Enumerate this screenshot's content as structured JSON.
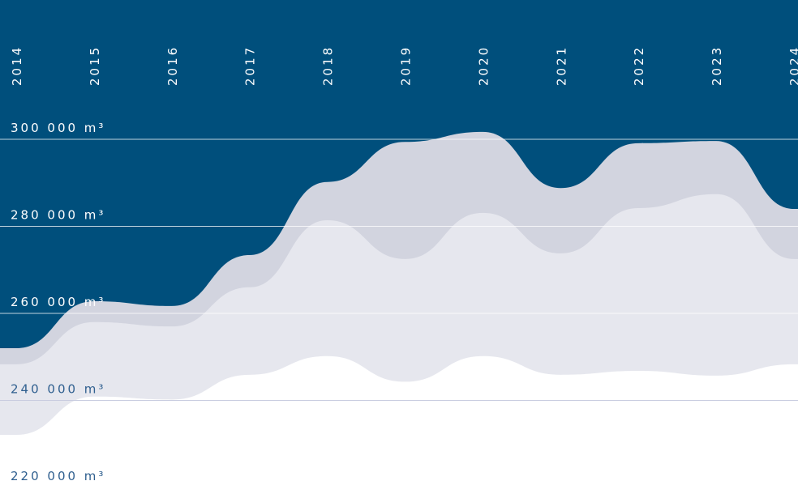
{
  "chart_data": {
    "type": "area",
    "categories": [
      "2014",
      "2015",
      "2016",
      "2017",
      "2018",
      "2019",
      "2020",
      "2021",
      "2022",
      "2023",
      "2024"
    ],
    "series": [
      {
        "color": "#d2d4df",
        "values": [
          252000,
          262800,
          261700,
          273400,
          290200,
          299400,
          301700,
          288800,
          299100,
          299600,
          284000
        ]
      },
      {
        "color": "#e6e7ee",
        "values": [
          248300,
          258000,
          257000,
          266000,
          281400,
          272500,
          283100,
          273800,
          284200,
          287400,
          272500
        ]
      },
      {
        "color": "#ffffff",
        "values": [
          232100,
          240900,
          240200,
          245900,
          250200,
          244300,
          250200,
          245900,
          246800,
          245700,
          248300
        ]
      }
    ],
    "ylim": [
      221500,
      332000
    ],
    "yticks": [
      {
        "value": 220000,
        "label": "220 000 m³"
      },
      {
        "value": 240000,
        "label": "240 000 m³"
      },
      {
        "value": 260000,
        "label": "260 000 m³"
      },
      {
        "value": 280000,
        "label": "280 000 m³"
      },
      {
        "value": 300000,
        "label": "300 000 m³"
      }
    ],
    "background": "#004f7c",
    "grid": true
  }
}
